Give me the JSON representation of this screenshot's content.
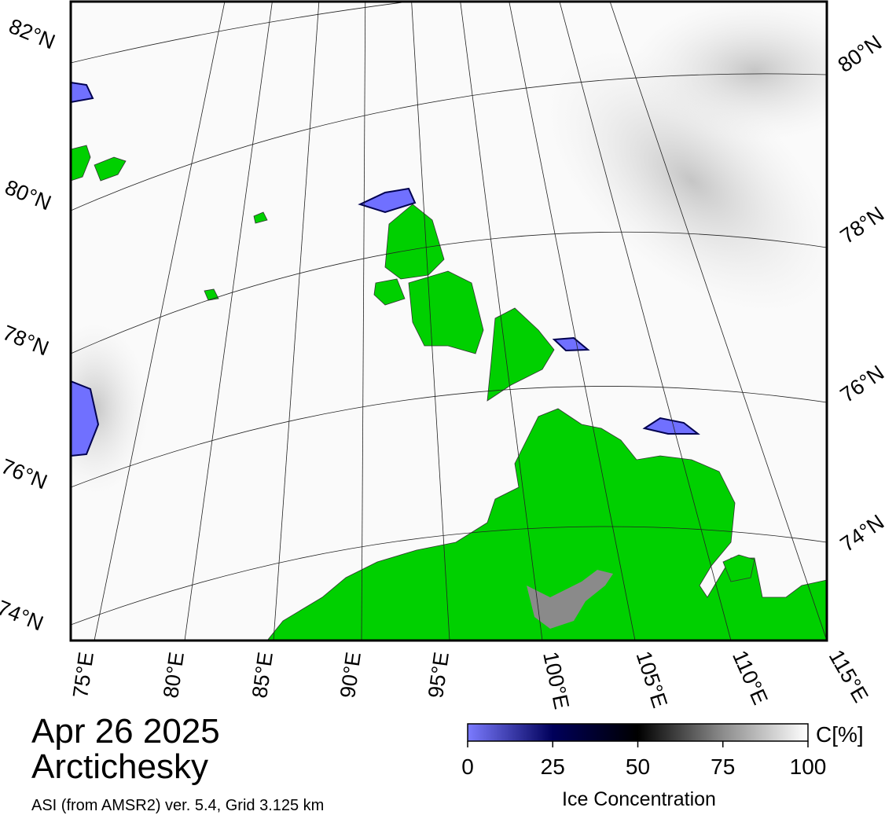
{
  "map": {
    "title": "Apr 26 2025",
    "region": "Arctichesky",
    "source": "ASI (from AMSR2) ver. 5.4,  Grid 3.125 km",
    "lat_labels_left": [
      "82°N",
      "80°N",
      "78°N",
      "76°N",
      "74°N"
    ],
    "lat_labels_right": [
      "80°N",
      "78°N",
      "76°N",
      "74°N"
    ],
    "lon_labels": [
      "75°E",
      "80°E",
      "85°E",
      "90°E",
      "95°E",
      "100°E",
      "105°E",
      "110°E",
      "115°E"
    ]
  },
  "colorbar": {
    "label": "Ice Concentration",
    "unit": "C[%]",
    "lim": [
      0,
      100
    ],
    "ticks": [
      0,
      25,
      50,
      75,
      100
    ]
  }
}
